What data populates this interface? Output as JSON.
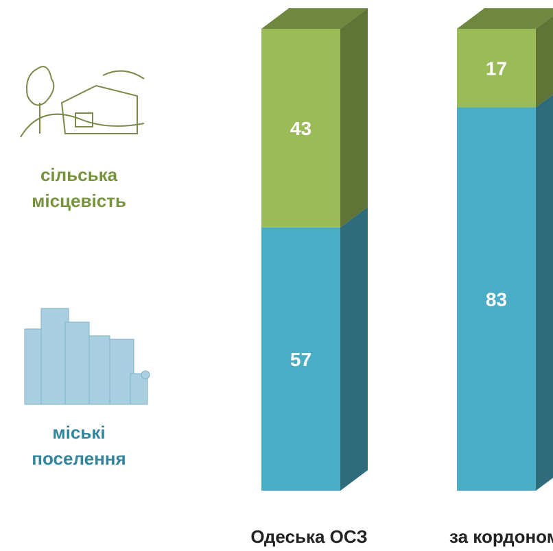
{
  "chart_data": {
    "type": "bar",
    "stacked": true,
    "categories": [
      "Одеська ОСЗ",
      "за кордоном"
    ],
    "series": [
      {
        "name": "міські поселення",
        "color": "#4bacc6",
        "values": [
          57,
          83
        ]
      },
      {
        "name": "сільська місцевість",
        "color": "#9bbb59",
        "values": [
          43,
          17
        ]
      }
    ],
    "ylim": [
      0,
      100
    ]
  }
}
